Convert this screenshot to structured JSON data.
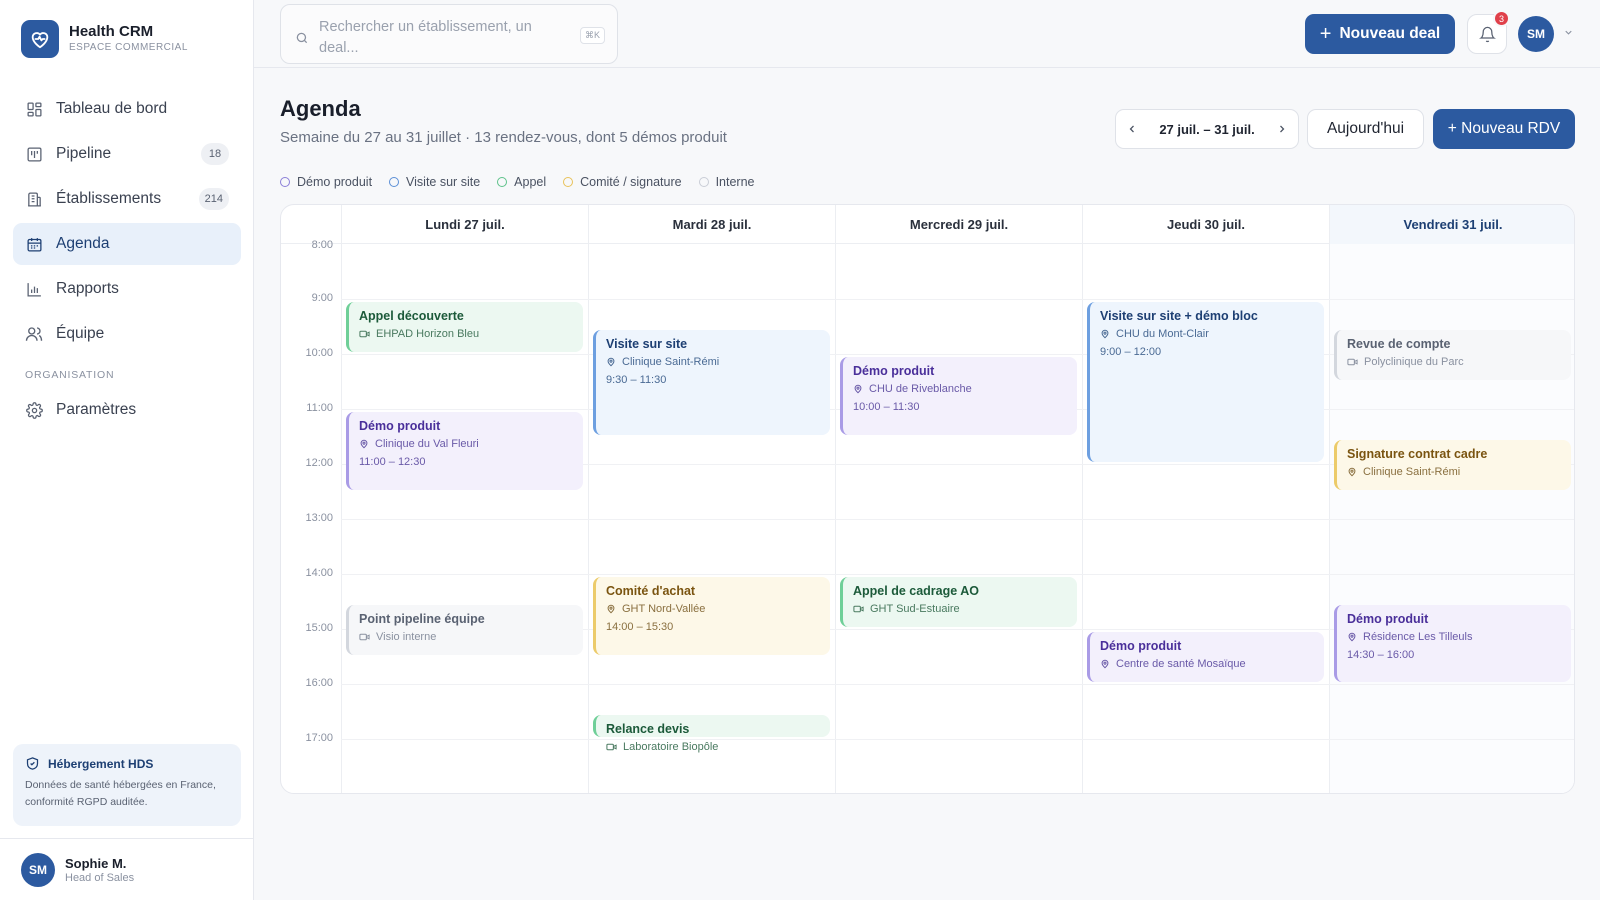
{
  "brand": {
    "title": "Health CRM",
    "subtitle": "ESPACE COMMERCIAL"
  },
  "nav": {
    "items": [
      {
        "label": "Tableau de bord",
        "icon": "dashboard-icon"
      },
      {
        "label": "Pipeline",
        "icon": "pipeline-icon",
        "badge": "18"
      },
      {
        "label": "Établissements",
        "icon": "building-icon",
        "badge": "214"
      },
      {
        "label": "Agenda",
        "icon": "calendar-icon",
        "active": true
      },
      {
        "label": "Rapports",
        "icon": "chart-icon"
      },
      {
        "label": "Équipe",
        "icon": "team-icon"
      }
    ],
    "section_label": "ORGANISATION",
    "settings_label": "Paramètres"
  },
  "hds": {
    "title": "Hébergement HDS",
    "text": "Données de santé hébergées en France, conformité RGPD auditée."
  },
  "user": {
    "initials": "SM",
    "name": "Sophie M.",
    "role": "Head of Sales"
  },
  "topbar": {
    "search_placeholder": "Rechercher un établissement, un deal...",
    "search_shortcut": "⌘K",
    "new_deal_label": "Nouveau deal",
    "notifications_count": "3",
    "avatar_initials": "SM"
  },
  "header": {
    "title": "Agenda",
    "subtitle": "Semaine du 27 au 31 juillet · 13 rendez-vous, dont 5 démos produit",
    "week_range": "27 juil. – 31 juil.",
    "today_label": "Aujourd'hui",
    "new_rdv_label": "+ Nouveau RDV"
  },
  "legend": [
    {
      "label": "Démo produit",
      "color": "#8b7fd8"
    },
    {
      "label": "Visite sur site",
      "color": "#5b8fd6"
    },
    {
      "label": "Appel",
      "color": "#5ec28a"
    },
    {
      "label": "Comité / signature",
      "color": "#e8c25a"
    },
    {
      "label": "Interne",
      "color": "#c9cdd6"
    }
  ],
  "calendar": {
    "days": [
      {
        "label": "Lundi 27 juil."
      },
      {
        "label": "Mardi 28 juil."
      },
      {
        "label": "Mercredi 29 juil."
      },
      {
        "label": "Jeudi 30 juil."
      },
      {
        "label": "Vendredi 31 juil.",
        "today": true
      }
    ],
    "hours": [
      "8:00",
      "9:00",
      "10:00",
      "11:00",
      "12:00",
      "13:00",
      "14:00",
      "15:00",
      "16:00",
      "17:00"
    ],
    "events": [
      {
        "day": 0,
        "start": 9.0,
        "end": 10.0,
        "type": "appel",
        "title": "Appel découverte",
        "location": "EHPAD Horizon Bleu",
        "loc_icon": "video",
        "time": ""
      },
      {
        "day": 0,
        "start": 11.0,
        "end": 12.5,
        "type": "demo",
        "title": "Démo produit",
        "location": "Clinique du Val Fleuri",
        "loc_icon": "pin",
        "time": "11:00 – 12:30"
      },
      {
        "day": 0,
        "start": 14.5,
        "end": 15.5,
        "type": "interne",
        "title": "Point pipeline équipe",
        "location": "Visio interne",
        "loc_icon": "video",
        "time": ""
      },
      {
        "day": 1,
        "start": 9.5,
        "end": 11.5,
        "type": "visite",
        "title": "Visite sur site",
        "location": "Clinique Saint-Rémi",
        "loc_icon": "pin",
        "time": "9:30 – 11:30"
      },
      {
        "day": 1,
        "start": 14.0,
        "end": 15.5,
        "type": "comite",
        "title": "Comité d'achat",
        "location": "GHT Nord-Vallée",
        "loc_icon": "pin",
        "time": "14:00 – 15:30"
      },
      {
        "day": 1,
        "start": 16.5,
        "end": 17.0,
        "type": "appel",
        "title": "Relance devis",
        "location": "Laboratoire Biopôle",
        "loc_icon": "video",
        "time": ""
      },
      {
        "day": 2,
        "start": 10.0,
        "end": 11.5,
        "type": "demo",
        "title": "Démo produit",
        "location": "CHU de Riveblanche",
        "loc_icon": "pin",
        "time": "10:00 – 11:30"
      },
      {
        "day": 2,
        "start": 14.0,
        "end": 15.0,
        "type": "appel",
        "title": "Appel de cadrage AO",
        "location": "GHT Sud-Estuaire",
        "loc_icon": "video",
        "time": ""
      },
      {
        "day": 3,
        "start": 9.0,
        "end": 12.0,
        "type": "visite",
        "title": "Visite sur site + démo bloc",
        "location": "CHU du Mont-Clair",
        "loc_icon": "pin",
        "time": "9:00 – 12:00"
      },
      {
        "day": 3,
        "start": 15.0,
        "end": 16.0,
        "type": "demo",
        "title": "Démo produit",
        "location": "Centre de santé Mosaïque",
        "loc_icon": "pin",
        "time": ""
      },
      {
        "day": 4,
        "start": 9.5,
        "end": 10.5,
        "type": "interne",
        "title": "Revue de compte",
        "location": "Polyclinique du Parc",
        "loc_icon": "video",
        "time": ""
      },
      {
        "day": 4,
        "start": 11.5,
        "end": 12.5,
        "type": "comite",
        "title": "Signature contrat cadre",
        "location": "Clinique Saint-Rémi",
        "loc_icon": "pin",
        "time": ""
      },
      {
        "day": 4,
        "start": 14.5,
        "end": 16.0,
        "type": "demo",
        "title": "Démo produit",
        "location": "Résidence Les Tilleuls",
        "loc_icon": "pin",
        "time": "14:30 – 16:00"
      }
    ]
  },
  "colors": {
    "accent": "#2c5aa0",
    "demo": {
      "bg": "#f3f0fc",
      "border": "#a99be6",
      "title": "#4a2f9a",
      "text": "#6a5aa8"
    },
    "visite": {
      "bg": "#eef5fd",
      "border": "#6d9fe0",
      "title": "#1d3f73",
      "text": "#4a6a94"
    },
    "appel": {
      "bg": "#ecf8f1",
      "border": "#6fcf98",
      "title": "#1c5a3a",
      "text": "#4a7a60"
    },
    "comite": {
      "bg": "#fdf8e8",
      "border": "#eccb6a",
      "title": "#7a5410",
      "text": "#8a7040"
    },
    "interne": {
      "bg": "#f6f7f9",
      "border": "#d3d7de",
      "title": "#5a6272",
      "text": "#8a91a0"
    }
  }
}
